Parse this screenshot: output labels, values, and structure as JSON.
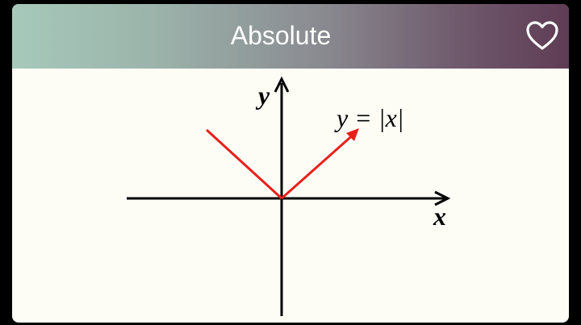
{
  "card": {
    "title": "Absolute",
    "favorite_icon": "heart-outline-icon"
  },
  "graph": {
    "y_axis_label": "y",
    "x_axis_label": "x",
    "equation_label": "y = |x|",
    "curve_color": "#e8201a",
    "axis_color": "#000000"
  }
}
